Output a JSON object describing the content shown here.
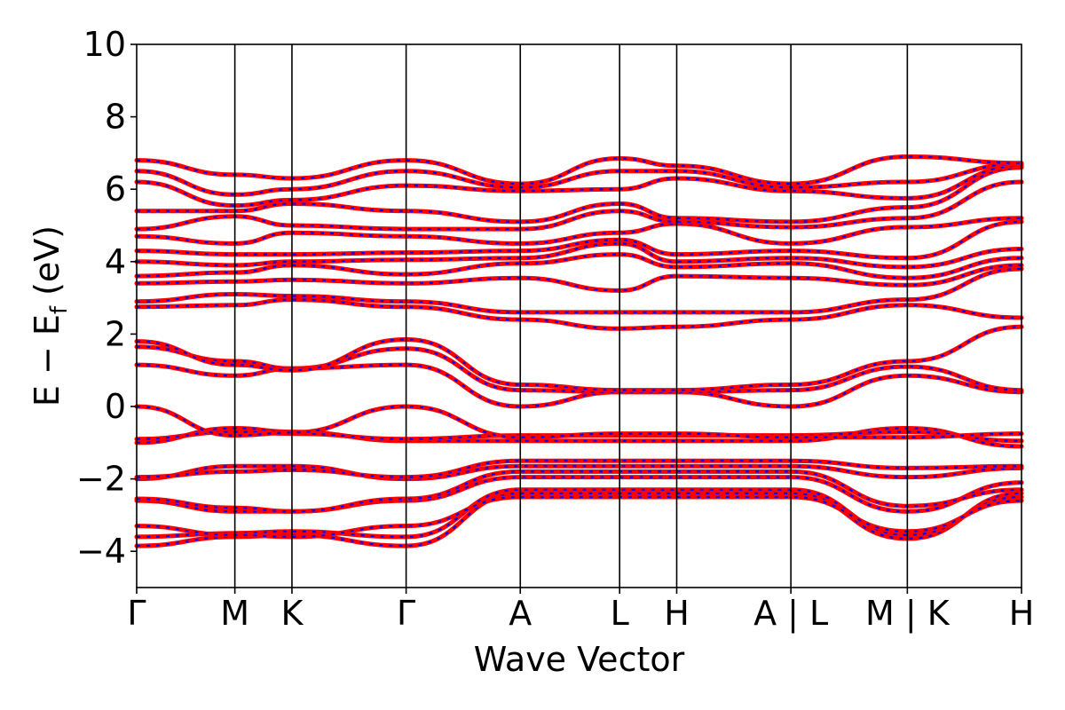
{
  "chart_data": {
    "type": "line",
    "title": "",
    "xlabel": "Wave Vector",
    "ylabel": "E − E",
    "ylabel_sub": "f",
    "ylabel_suffix": " (eV)",
    "ylim": [
      -5,
      10
    ],
    "yticks": [
      "−4",
      "−2",
      "0",
      "2",
      "4",
      "6",
      "8",
      "10"
    ],
    "ytick_values": [
      -4,
      -2,
      0,
      2,
      4,
      6,
      8,
      10
    ],
    "xlim": [
      0,
      7.75
    ],
    "kpoints": [
      {
        "label": "Γ",
        "x": 0
      },
      {
        "label": "M",
        "x": 0.86
      },
      {
        "label": "K",
        "x": 1.36
      },
      {
        "label": "Γ",
        "x": 2.36
      },
      {
        "label": "A",
        "x": 3.36
      },
      {
        "label": "L",
        "x": 4.23
      },
      {
        "label": "H",
        "x": 4.73
      },
      {
        "label": "A | L",
        "x": 5.73
      },
      {
        "label": "M | K",
        "x": 6.75
      },
      {
        "label": "H",
        "x": 7.75
      }
    ],
    "grid": false,
    "colors": {
      "spin_up": "#ff0000",
      "spin_down": "#0000ff"
    },
    "band_x": [
      0,
      0.86,
      1.36,
      2.36,
      3.36,
      4.23,
      4.73,
      5.73,
      6.75,
      7.75
    ],
    "bands": [
      [
        -3.85,
        -3.6,
        -3.55,
        -3.85,
        -2.4,
        -2.4,
        -2.4,
        -2.4,
        -3.65,
        -2.4
      ],
      [
        -3.6,
        -3.5,
        -3.45,
        -3.6,
        -2.3,
        -2.3,
        -2.3,
        -2.3,
        -3.55,
        -2.5
      ],
      [
        -3.3,
        -3.55,
        -3.6,
        -3.3,
        -2.5,
        -2.5,
        -2.5,
        -2.5,
        -3.45,
        -2.6
      ],
      [
        -2.6,
        -2.9,
        -2.9,
        -2.6,
        -1.95,
        -1.95,
        -1.95,
        -1.95,
        -2.9,
        -2.1
      ],
      [
        -2.55,
        -2.8,
        -2.9,
        -2.55,
        -1.8,
        -1.8,
        -1.8,
        -1.8,
        -2.75,
        -2.3
      ],
      [
        -2.0,
        -1.65,
        -1.65,
        -2.0,
        -1.65,
        -1.65,
        -1.65,
        -1.65,
        -1.95,
        -1.7
      ],
      [
        -1.95,
        -1.8,
        -1.75,
        -1.95,
        -1.5,
        -1.5,
        -1.5,
        -1.5,
        -1.7,
        -1.65
      ],
      [
        -1.0,
        -0.6,
        -0.7,
        -0.95,
        -0.95,
        -0.95,
        -0.95,
        -0.95,
        -0.6,
        -1.1
      ],
      [
        -0.9,
        -0.7,
        -0.75,
        -0.9,
        -0.8,
        -0.8,
        -0.8,
        -0.8,
        -0.7,
        -0.95
      ],
      [
        0.0,
        -0.8,
        -0.72,
        0.0,
        -0.85,
        -0.75,
        -0.75,
        -0.85,
        -0.85,
        -0.75
      ],
      [
        1.15,
        0.85,
        1.05,
        1.15,
        0.0,
        0.4,
        0.4,
        0.0,
        0.85,
        0.4
      ],
      [
        1.65,
        1.25,
        1.05,
        1.6,
        0.45,
        0.4,
        0.4,
        0.45,
        1.1,
        0.45
      ],
      [
        1.8,
        1.15,
        1.0,
        1.85,
        0.6,
        0.45,
        0.45,
        0.6,
        1.25,
        2.2
      ],
      [
        2.75,
        2.8,
        2.95,
        2.75,
        2.4,
        2.15,
        2.2,
        2.4,
        2.8,
        2.45
      ],
      [
        2.9,
        3.1,
        3.05,
        2.9,
        2.6,
        2.6,
        2.6,
        2.6,
        2.95,
        3.8
      ],
      [
        3.4,
        3.45,
        3.5,
        3.4,
        3.55,
        3.2,
        3.6,
        3.55,
        3.35,
        3.9
      ],
      [
        3.6,
        3.7,
        3.9,
        3.65,
        3.95,
        4.2,
        3.85,
        3.95,
        3.55,
        4.1
      ],
      [
        4.0,
        3.9,
        4.0,
        4.05,
        4.1,
        4.5,
        4.0,
        4.1,
        3.85,
        4.35
      ],
      [
        4.3,
        4.2,
        4.2,
        4.25,
        4.3,
        4.6,
        4.2,
        4.3,
        4.1,
        5.1
      ],
      [
        4.7,
        4.5,
        4.8,
        4.7,
        4.5,
        4.8,
        5.05,
        4.5,
        4.95,
        5.2
      ],
      [
        4.9,
        5.25,
        5.0,
        4.9,
        4.9,
        5.4,
        5.1,
        4.95,
        5.2,
        6.2
      ],
      [
        5.4,
        5.4,
        5.6,
        5.4,
        5.1,
        5.6,
        5.2,
        5.1,
        5.5,
        6.6
      ],
      [
        6.2,
        5.55,
        5.7,
        6.1,
        5.95,
        6.0,
        6.3,
        5.95,
        5.75,
        6.65
      ],
      [
        6.5,
        5.85,
        6.0,
        6.5,
        6.05,
        6.5,
        6.5,
        6.05,
        6.2,
        6.7
      ],
      [
        6.8,
        6.4,
        6.3,
        6.8,
        6.15,
        6.85,
        6.65,
        6.15,
        6.9,
        6.72
      ]
    ]
  }
}
